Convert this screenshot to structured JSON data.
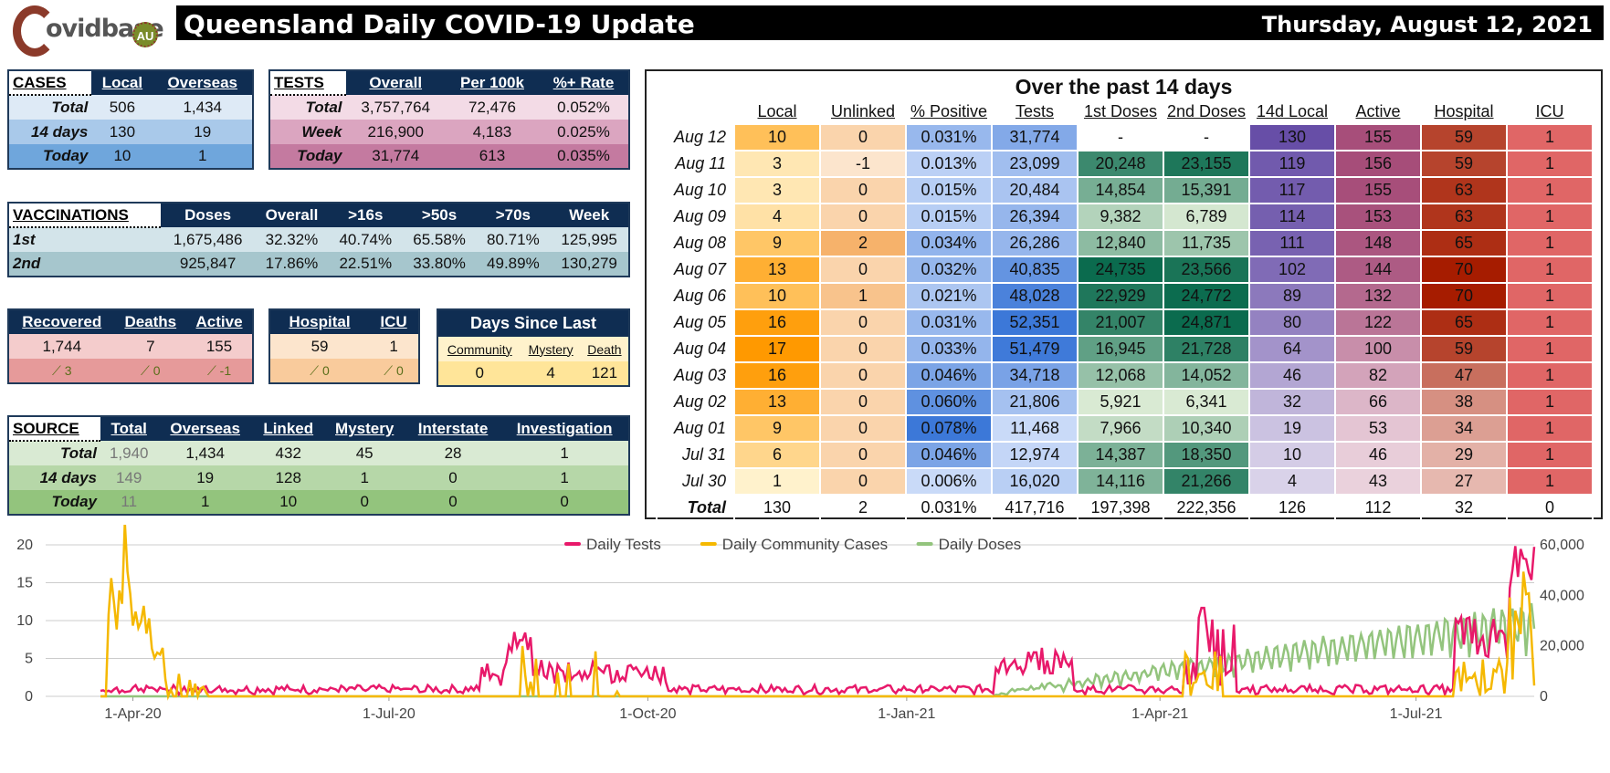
{
  "logo": {
    "text": "ovidbase",
    "badge": "AU"
  },
  "header": {
    "title": "Queensland Daily COVID-19 Update",
    "date": "Thursday, August 12, 2021"
  },
  "cases": {
    "title": "CASES",
    "cols": [
      "Local",
      "Overseas"
    ],
    "rows": [
      {
        "label": "Total",
        "v": [
          "506",
          "1,434"
        ]
      },
      {
        "label": "14 days",
        "v": [
          "130",
          "19"
        ]
      },
      {
        "label": "Today",
        "v": [
          "10",
          "1"
        ]
      }
    ]
  },
  "tests": {
    "title": "TESTS",
    "cols": [
      "Overall",
      "Per 100k",
      "%+ Rate"
    ],
    "rows": [
      {
        "label": "Total",
        "v": [
          "3,757,764",
          "72,476",
          "0.052%"
        ]
      },
      {
        "label": "Week",
        "v": [
          "216,900",
          "4,183",
          "0.025%"
        ]
      },
      {
        "label": "Today",
        "v": [
          "31,774",
          "613",
          "0.035%"
        ]
      }
    ]
  },
  "vacc": {
    "title": "VACCINATIONS",
    "cols": [
      "Doses",
      "Overall",
      ">16s",
      ">50s",
      ">70s",
      "Week"
    ],
    "rows": [
      {
        "label": "1st",
        "v": [
          "1,675,486",
          "32.32%",
          "40.74%",
          "65.58%",
          "80.71%",
          "125,995"
        ]
      },
      {
        "label": "2nd",
        "v": [
          "925,847",
          "17.86%",
          "22.51%",
          "33.80%",
          "49.89%",
          "130,279"
        ]
      }
    ]
  },
  "outcomes": {
    "cols": [
      "Recovered",
      "Deaths",
      "Active"
    ],
    "values": [
      "1,744",
      "7",
      "155"
    ],
    "deltas": [
      "3",
      "0",
      "-1"
    ]
  },
  "hosp": {
    "cols": [
      "Hospital",
      "ICU"
    ],
    "values": [
      "59",
      "1"
    ],
    "deltas": [
      "0",
      "0"
    ]
  },
  "days_since": {
    "title": "Days Since Last",
    "cols": [
      "Community",
      "Mystery",
      "Death"
    ],
    "values": [
      "0",
      "4",
      "121"
    ]
  },
  "source": {
    "title": "SOURCE",
    "cols": [
      "Total",
      "Overseas",
      "Linked",
      "Mystery",
      "Interstate",
      "Investigation"
    ],
    "rows": [
      {
        "label": "Total",
        "v": [
          "1,940",
          "1,434",
          "432",
          "45",
          "28",
          "1"
        ]
      },
      {
        "label": "14 days",
        "v": [
          "149",
          "19",
          "128",
          "1",
          "0",
          "1"
        ]
      },
      {
        "label": "Today",
        "v": [
          "11",
          "1",
          "10",
          "0",
          "0",
          "0"
        ]
      }
    ]
  },
  "past14": {
    "title": "Over the past 14 days",
    "cols": [
      "Local",
      "Unlinked",
      "% Positive",
      "Tests",
      "1st Doses",
      "2nd Doses",
      "14d Local",
      "Active",
      "Hospital",
      "ICU"
    ],
    "rows": [
      {
        "d": "Aug 12",
        "v": [
          "10",
          "0",
          "0.031%",
          "31,774",
          "-",
          "-",
          "130",
          "155",
          "59",
          "1"
        ]
      },
      {
        "d": "Aug 11",
        "v": [
          "3",
          "-1",
          "0.013%",
          "23,099",
          "20,248",
          "23,155",
          "119",
          "156",
          "59",
          "1"
        ]
      },
      {
        "d": "Aug 10",
        "v": [
          "3",
          "0",
          "0.015%",
          "20,484",
          "14,854",
          "15,391",
          "117",
          "155",
          "63",
          "1"
        ]
      },
      {
        "d": "Aug 09",
        "v": [
          "4",
          "0",
          "0.015%",
          "26,394",
          "9,382",
          "6,789",
          "114",
          "153",
          "63",
          "1"
        ]
      },
      {
        "d": "Aug 08",
        "v": [
          "9",
          "2",
          "0.034%",
          "26,286",
          "12,840",
          "11,735",
          "111",
          "148",
          "65",
          "1"
        ]
      },
      {
        "d": "Aug 07",
        "v": [
          "13",
          "0",
          "0.032%",
          "40,835",
          "24,735",
          "23,566",
          "102",
          "144",
          "70",
          "1"
        ]
      },
      {
        "d": "Aug 06",
        "v": [
          "10",
          "1",
          "0.021%",
          "48,028",
          "22,929",
          "24,772",
          "89",
          "132",
          "70",
          "1"
        ]
      },
      {
        "d": "Aug 05",
        "v": [
          "16",
          "0",
          "0.031%",
          "52,351",
          "21,007",
          "24,871",
          "80",
          "122",
          "65",
          "1"
        ]
      },
      {
        "d": "Aug 04",
        "v": [
          "17",
          "0",
          "0.033%",
          "51,479",
          "16,945",
          "21,728",
          "64",
          "100",
          "59",
          "1"
        ]
      },
      {
        "d": "Aug 03",
        "v": [
          "16",
          "0",
          "0.046%",
          "34,718",
          "12,068",
          "14,052",
          "46",
          "82",
          "47",
          "1"
        ]
      },
      {
        "d": "Aug 02",
        "v": [
          "13",
          "0",
          "0.060%",
          "21,806",
          "5,921",
          "6,341",
          "32",
          "66",
          "38",
          "1"
        ]
      },
      {
        "d": "Aug 01",
        "v": [
          "9",
          "0",
          "0.078%",
          "11,468",
          "7,966",
          "10,340",
          "19",
          "53",
          "34",
          "1"
        ]
      },
      {
        "d": "Jul 31",
        "v": [
          "6",
          "0",
          "0.046%",
          "12,974",
          "14,387",
          "18,350",
          "10",
          "46",
          "29",
          "1"
        ]
      },
      {
        "d": "Jul 30",
        "v": [
          "1",
          "0",
          "0.006%",
          "16,020",
          "14,116",
          "21,266",
          "4",
          "43",
          "27",
          "1"
        ]
      }
    ],
    "total": {
      "label": "Total",
      "v": [
        "130",
        "2",
        "0.031%",
        "417,716",
        "197,398",
        "222,356",
        "126",
        "112",
        "32",
        "0"
      ]
    }
  },
  "chart_data": {
    "type": "line",
    "series": [
      {
        "name": "Daily Tests",
        "color": "#e8196a",
        "axis": "right"
      },
      {
        "name": "Daily Community Cases",
        "color": "#f5b800",
        "axis": "left"
      },
      {
        "name": "Daily Doses",
        "color": "#93c47d",
        "axis": "right"
      }
    ],
    "yleft": {
      "ticks": [
        "0",
        "5",
        "10",
        "15",
        "20"
      ],
      "range": [
        0,
        20
      ]
    },
    "yright": {
      "ticks": [
        "0",
        "20,000",
        "40,000",
        "60,000"
      ],
      "range": [
        0,
        60000
      ]
    },
    "xticks": [
      "1-Apr-20",
      "1-Jul-20",
      "1-Oct-20",
      "1-Jan-21",
      "1-Apr-21",
      "1-Jul-21"
    ],
    "x_range": [
      "2020-03-01",
      "2021-08-12"
    ]
  }
}
